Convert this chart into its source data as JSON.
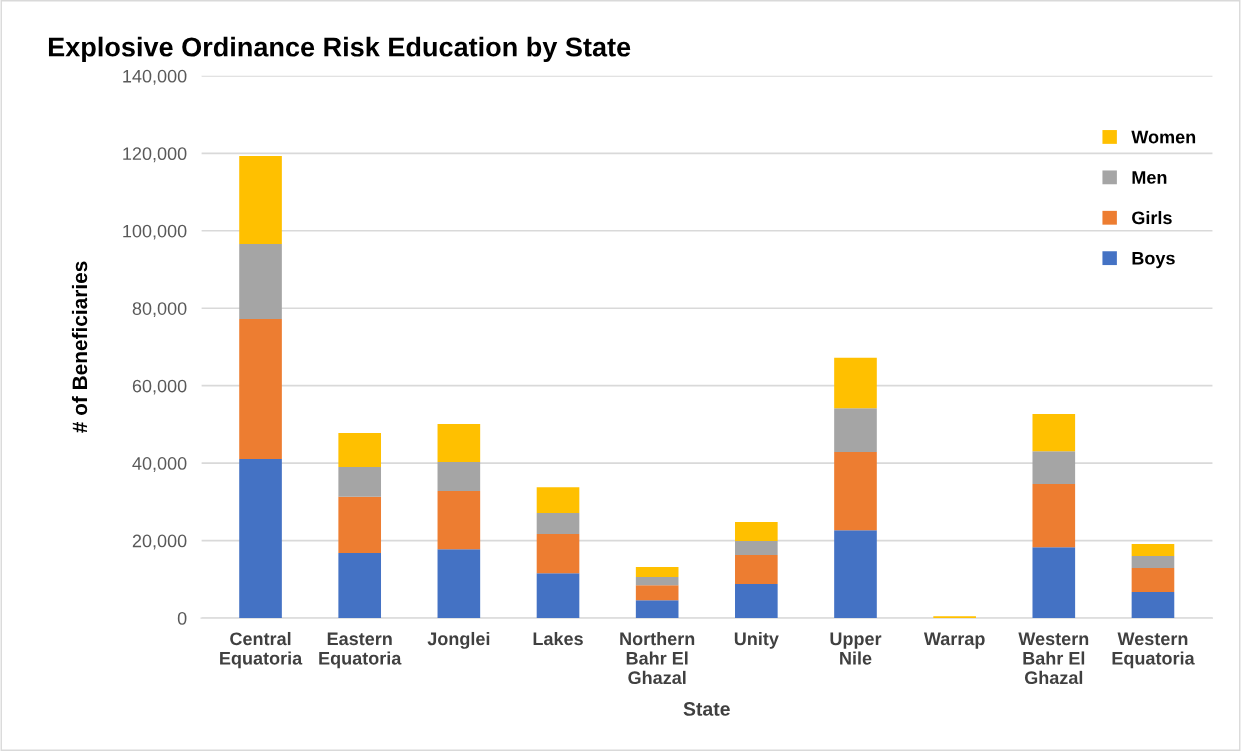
{
  "chart_data": {
    "type": "bar",
    "title": "Explosive Ordinance Risk Education by State",
    "xlabel": "State",
    "ylabel": "# of Beneficiaries",
    "categories": [
      "Central\nEquatoria",
      "Eastern\nEquatoria",
      "Jonglei",
      "Lakes",
      "Northern\nBahr El\nGhazal",
      "Unity",
      "Upper\nNile",
      "Warrap",
      "Western\nBahr El\nGhazal",
      "Western\nEquatoria"
    ],
    "stacked": true,
    "series": [
      {
        "name": "Boys",
        "color": "#4472c4",
        "values": [
          41100,
          16800,
          17800,
          11600,
          4600,
          8800,
          22700,
          null,
          18300,
          6700
        ]
      },
      {
        "name": "Girls",
        "color": "#ed7d31",
        "values": [
          36100,
          14500,
          15000,
          10100,
          3900,
          7500,
          20200,
          null,
          16300,
          6200
        ]
      },
      {
        "name": "Men",
        "color": "#a5a5a5",
        "values": [
          19400,
          7700,
          7500,
          5400,
          2100,
          3600,
          11300,
          null,
          8500,
          3100
        ]
      },
      {
        "name": "Women",
        "color": "#ffc000",
        "values": [
          22700,
          8800,
          9800,
          6700,
          2600,
          4900,
          13000,
          500,
          9600,
          3100
        ]
      }
    ],
    "ylim": [
      0,
      140000
    ],
    "yticks": [
      {
        "value": 0,
        "label": "0"
      },
      {
        "value": 20000,
        "label": "20,000"
      },
      {
        "value": 40000,
        "label": "40,000"
      },
      {
        "value": 60000,
        "label": "60,000"
      },
      {
        "value": 80000,
        "label": "80,000"
      },
      {
        "value": 100000,
        "label": "100,000"
      },
      {
        "value": 120000,
        "label": "120,000"
      },
      {
        "value": 140000,
        "label": "140,000"
      }
    ],
    "grid": "y",
    "legend": "top right"
  }
}
